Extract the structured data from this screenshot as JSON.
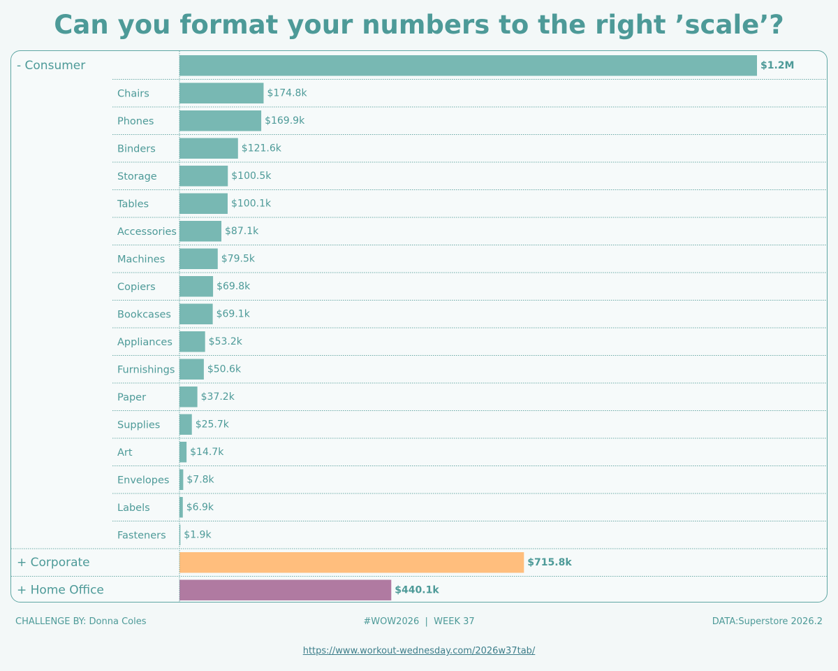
{
  "title": "Can you format your numbers to the right ’scale’?",
  "colors": {
    "consumer": "#78b8b3",
    "corporate": "#ffbe7d",
    "home_office": "#b07aa1",
    "text": "#4d9a98",
    "grid": "#6aa9a6"
  },
  "chart_data": {
    "type": "bar",
    "orientation": "horizontal",
    "title": "Can you format your numbers to the right ’scale’?",
    "segments": [
      {
        "label": "- Consumer",
        "value": 1200000,
        "value_label": "$1.2M",
        "color": "#78b8b3",
        "expanded": true,
        "categories": [
          {
            "label": "Chairs",
            "value": 174800,
            "value_label": "$174.8k"
          },
          {
            "label": "Phones",
            "value": 169900,
            "value_label": "$169.9k"
          },
          {
            "label": "Binders",
            "value": 121600,
            "value_label": "$121.6k"
          },
          {
            "label": "Storage",
            "value": 100500,
            "value_label": "$100.5k"
          },
          {
            "label": "Tables",
            "value": 100100,
            "value_label": "$100.1k"
          },
          {
            "label": "Accessories",
            "value": 87100,
            "value_label": "$87.1k"
          },
          {
            "label": "Machines",
            "value": 79500,
            "value_label": "$79.5k"
          },
          {
            "label": "Copiers",
            "value": 69800,
            "value_label": "$69.8k"
          },
          {
            "label": "Bookcases",
            "value": 69100,
            "value_label": "$69.1k"
          },
          {
            "label": "Appliances",
            "value": 53200,
            "value_label": "$53.2k"
          },
          {
            "label": "Furnishings",
            "value": 50600,
            "value_label": "$50.6k"
          },
          {
            "label": "Paper",
            "value": 37200,
            "value_label": "$37.2k"
          },
          {
            "label": "Supplies",
            "value": 25700,
            "value_label": "$25.7k"
          },
          {
            "label": "Art",
            "value": 14700,
            "value_label": "$14.7k"
          },
          {
            "label": "Envelopes",
            "value": 7800,
            "value_label": "$7.8k"
          },
          {
            "label": "Labels",
            "value": 6900,
            "value_label": "$6.9k"
          },
          {
            "label": "Fasteners",
            "value": 1900,
            "value_label": "$1.9k"
          }
        ]
      },
      {
        "label": "+ Corporate",
        "value": 715800,
        "value_label": "$715.8k",
        "color": "#ffbe7d",
        "expanded": false,
        "categories": []
      },
      {
        "label": "+ Home Office",
        "value": 440100,
        "value_label": "$440.1k",
        "color": "#b07aa1",
        "expanded": false,
        "categories": []
      }
    ],
    "grid": false
  },
  "footer": {
    "left": "CHALLENGE BY: Donna Coles",
    "center": "#WOW2026  |  WEEK 37",
    "right": "DATA:Superstore 2026.2",
    "link": "https://www.workout-wednesday.com/2026w37tab/"
  }
}
